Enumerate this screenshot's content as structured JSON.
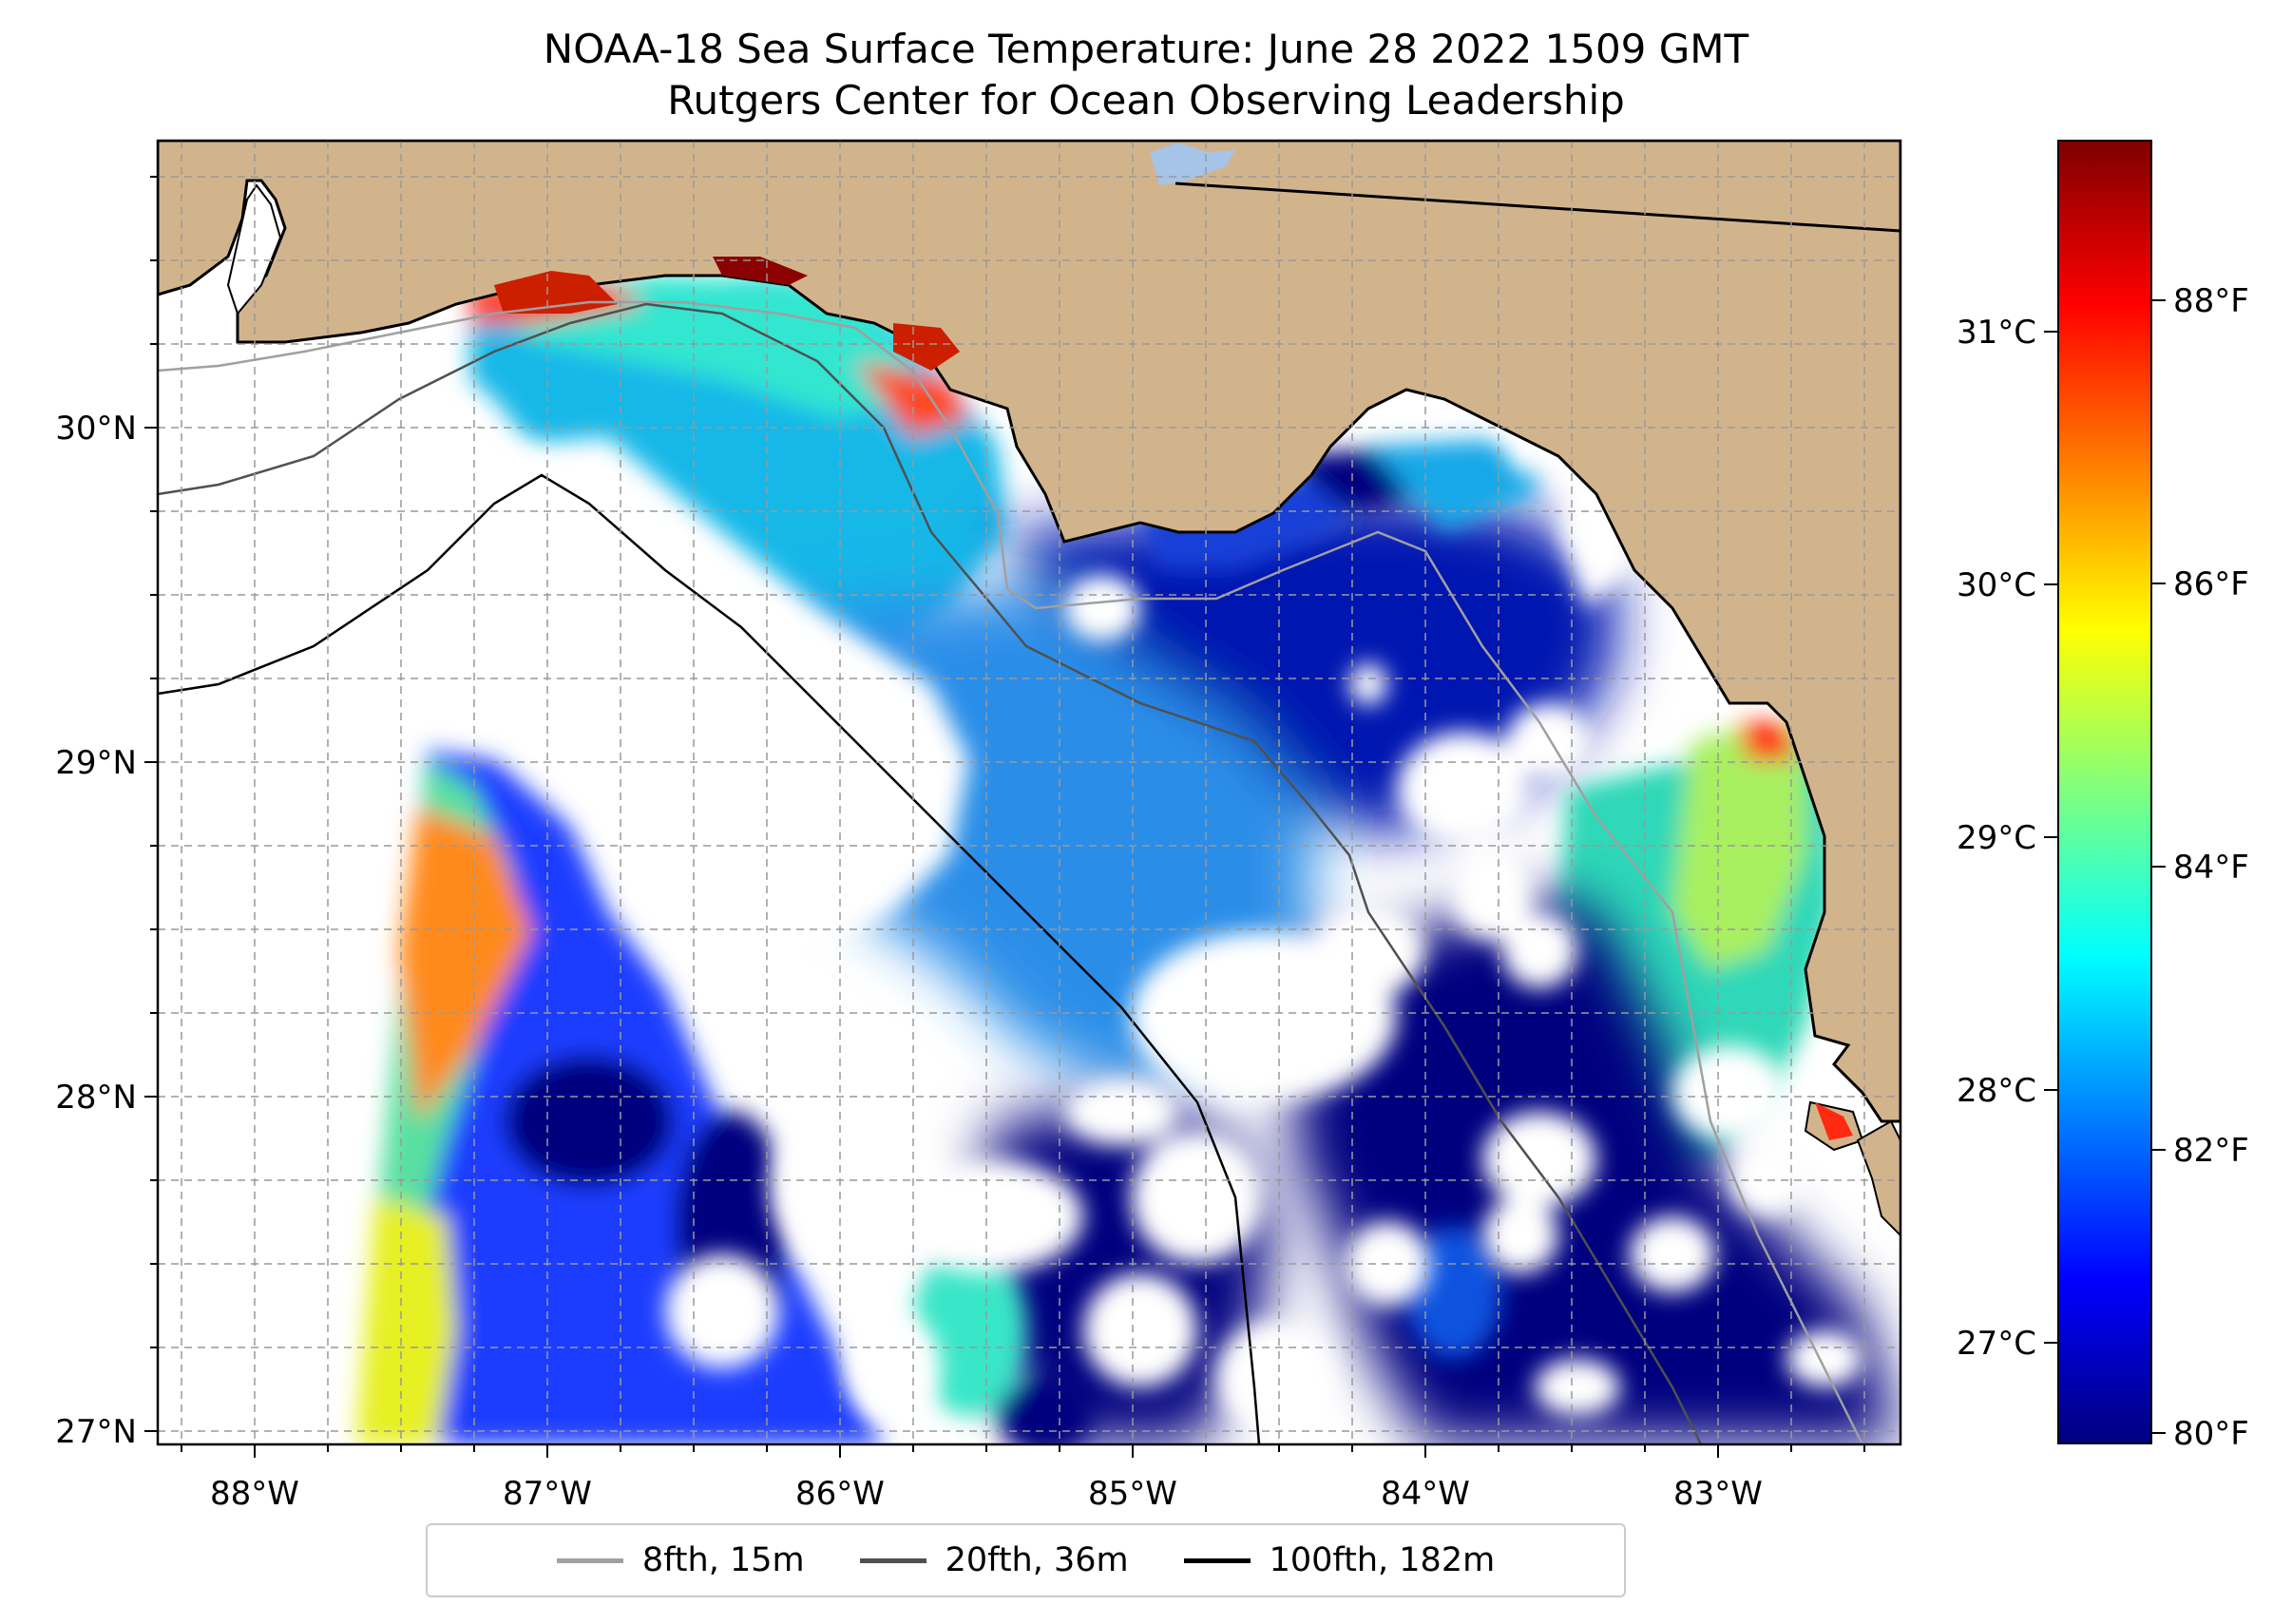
{
  "title": "NOAA-18 Sea Surface Temperature: June 28 2022 1509 GMT",
  "subtitle": "Rutgers Center for Ocean Observing Leadership",
  "lon_ticks": [
    {
      "value": -88,
      "label": "88°W"
    },
    {
      "value": -87,
      "label": "87°W"
    },
    {
      "value": -86,
      "label": "86°W"
    },
    {
      "value": -85,
      "label": "85°W"
    },
    {
      "value": -84,
      "label": "84°W"
    },
    {
      "value": -83,
      "label": "83°W"
    }
  ],
  "lat_ticks": [
    {
      "value": 30,
      "label": "30°N"
    },
    {
      "value": 29,
      "label": "29°N"
    },
    {
      "value": 28,
      "label": "28°N"
    },
    {
      "value": 27,
      "label": "27°N"
    }
  ],
  "colorbar": {
    "colormap": "jet",
    "celsius_ticks": [
      {
        "value": 31,
        "label": "31°C"
      },
      {
        "value": 30,
        "label": "30°C"
      },
      {
        "value": 29,
        "label": "29°C"
      },
      {
        "value": 28,
        "label": "28°C"
      },
      {
        "value": 27,
        "label": "27°C"
      }
    ],
    "fahrenheit_ticks": [
      {
        "value": 88,
        "label": "88°F"
      },
      {
        "value": 86,
        "label": "86°F"
      },
      {
        "value": 84,
        "label": "84°F"
      },
      {
        "value": 82,
        "label": "82°F"
      },
      {
        "value": 80,
        "label": "80°F"
      }
    ]
  },
  "legend": [
    {
      "label": "8fth, 15m",
      "color": "#a0a0a0"
    },
    {
      "label": "20fth, 36m",
      "color": "#505050"
    },
    {
      "label": "100fth, 182m",
      "color": "#000000"
    }
  ],
  "colors": {
    "land": "#d2b48c",
    "water": "#a6c3e8",
    "missing": "#ffffff"
  }
}
